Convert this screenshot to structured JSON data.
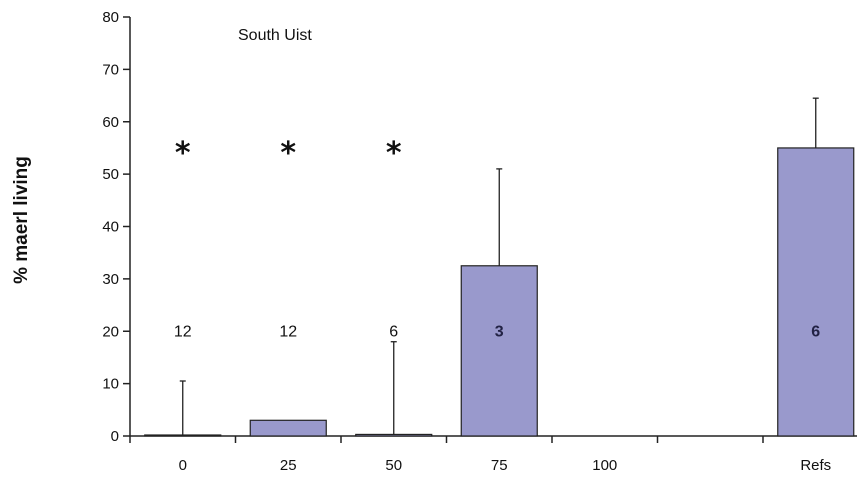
{
  "chart_data": {
    "type": "bar",
    "title": "",
    "annotation": "South Uist",
    "xlabel": "",
    "ylabel": "% maerl living",
    "ylim": [
      0,
      80
    ],
    "yticks": [
      "0",
      "10",
      "20",
      "30",
      "40",
      "50",
      "60",
      "70",
      "80"
    ],
    "categories": [
      "0",
      "25",
      "50",
      "75",
      "100",
      "",
      "Refs"
    ],
    "values": [
      0,
      3,
      0.3,
      32.5,
      null,
      null,
      55
    ],
    "error_upper": [
      10.5,
      null,
      18,
      51,
      null,
      null,
      64.5
    ],
    "sample_sizes": [
      "12",
      "12",
      "6",
      "3",
      "",
      "",
      "6"
    ],
    "significance": [
      "*",
      "*",
      "*",
      "",
      "",
      "",
      ""
    ],
    "grid": false,
    "bar_color": "#9999cc",
    "bar_edge_color": "#222222",
    "axis_color": "#222222"
  }
}
